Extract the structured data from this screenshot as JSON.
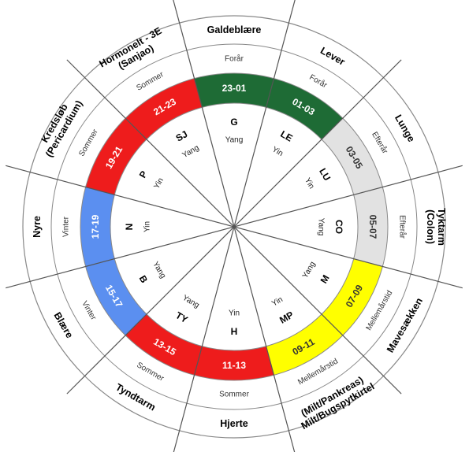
{
  "segments": [
    {
      "organ": [
        "Galdeblære"
      ],
      "season": "Forår",
      "time": "23-01",
      "abbr": "G",
      "yinyang": "Yang",
      "color": "#1e6b35",
      "text_color": "#ffffff"
    },
    {
      "organ": [
        "Lever"
      ],
      "season": "Forår",
      "time": "01-03",
      "abbr": "LE",
      "yinyang": "Yin",
      "color": "#1e6b35",
      "text_color": "#ffffff"
    },
    {
      "organ": [
        "Lunge"
      ],
      "season": "Efterår",
      "time": "03-05",
      "abbr": "LU",
      "yinyang": "Yin",
      "color": "#e2e2e2",
      "text_color": "#333333"
    },
    {
      "organ": [
        "Tyktarm",
        "(Colon)"
      ],
      "season": "Efterår",
      "time": "05-07",
      "abbr": "CO",
      "yinyang": "Yang",
      "color": "#e2e2e2",
      "text_color": "#333333"
    },
    {
      "organ": [
        "Mavesækken"
      ],
      "season": "Mellemårstid",
      "time": "07-09",
      "abbr": "M",
      "yinyang": "Yang",
      "color": "#ffff00",
      "text_color": "#333333"
    },
    {
      "organ": [
        "Milt/Bugspytkirtel",
        "(Milt/Pankreas)"
      ],
      "season": "Mellemårstid",
      "time": "09-11",
      "abbr": "MP",
      "yinyang": "Yin",
      "color": "#ffff00",
      "text_color": "#333333"
    },
    {
      "organ": [
        "Hjerte"
      ],
      "season": "Sommer",
      "time": "11-13",
      "abbr": "H",
      "yinyang": "Yin",
      "color": "#ee1c1c",
      "text_color": "#ffffff"
    },
    {
      "organ": [
        "Tyndtarm"
      ],
      "season": "Sommer",
      "time": "13-15",
      "abbr": "TY",
      "yinyang": "Yang",
      "color": "#ee1c1c",
      "text_color": "#ffffff"
    },
    {
      "organ": [
        "Blære"
      ],
      "season": "Vinter",
      "time": "15-17",
      "abbr": "B",
      "yinyang": "Yang",
      "color": "#5b8ff0",
      "text_color": "#ffffff"
    },
    {
      "organ": [
        "Nyre"
      ],
      "season": "Vinter",
      "time": "17-19",
      "abbr": "N",
      "yinyang": "Yin",
      "color": "#5b8ff0",
      "text_color": "#ffffff"
    },
    {
      "organ": [
        "Kredsløb",
        "(Pericardium)"
      ],
      "season": "Sommer",
      "time": "19-21",
      "abbr": "P",
      "yinyang": "Yin",
      "color": "#ee1c1c",
      "text_color": "#ffffff"
    },
    {
      "organ": [
        "Hormonelt - 3E",
        "(Sanjao)"
      ],
      "season": "Sommer",
      "time": "21-23",
      "abbr": "SJ",
      "yinyang": "Yang",
      "color": "#ee1c1c",
      "text_color": "#ffffff"
    }
  ],
  "colors": {
    "line": "#555555",
    "ring_line": "#888888",
    "background": "#ffffff"
  }
}
